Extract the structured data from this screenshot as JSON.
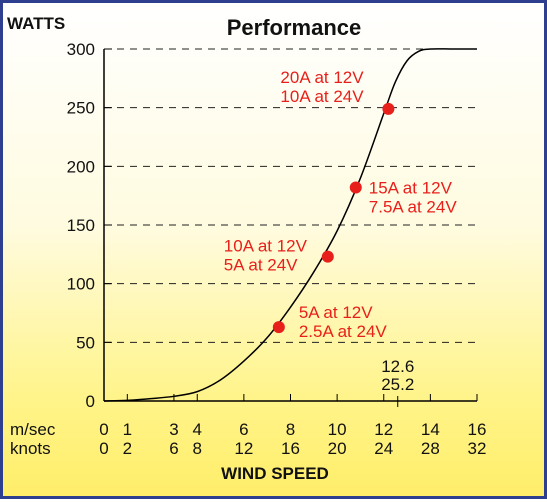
{
  "chart_data": {
    "type": "line",
    "title": "Performance",
    "ylabel": "WATTS",
    "xlabel": "WIND SPEED",
    "x_unit_primary": "m/sec",
    "x_unit_secondary": "knots",
    "xlim": [
      0,
      16
    ],
    "ylim": [
      0,
      300
    ],
    "y_ticks": [
      "0",
      "50",
      "100",
      "150",
      "200",
      "250",
      "300"
    ],
    "x_ticks": [
      {
        "msec": "0",
        "knots": "0",
        "v": 0
      },
      {
        "msec": "1",
        "knots": "2",
        "v": 1
      },
      {
        "msec": "3",
        "knots": "6",
        "v": 3
      },
      {
        "msec": "4",
        "knots": "8",
        "v": 4
      },
      {
        "msec": "6",
        "knots": "12",
        "v": 6
      },
      {
        "msec": "8",
        "knots": "16",
        "v": 8
      },
      {
        "msec": "10",
        "knots": "20",
        "v": 10
      },
      {
        "msec": "12",
        "knots": "24",
        "v": 12
      },
      {
        "msec": "14",
        "knots": "28",
        "v": 14
      },
      {
        "msec": "16",
        "knots": "32",
        "v": 16
      }
    ],
    "marker_tick": {
      "msec": "12.6",
      "knots": "25.2",
      "v": 12.6
    },
    "grid": "horizontal-dashed",
    "series": [
      {
        "x": [
          0,
          1,
          2,
          3,
          4,
          5,
          6,
          7,
          8,
          9,
          10,
          11,
          12,
          12.5,
          13,
          13.5,
          14,
          15,
          16
        ],
        "y": [
          0,
          0.5,
          2,
          4,
          8,
          18,
          34,
          54,
          80,
          110,
          145,
          190,
          245,
          272,
          290,
          298,
          300,
          300,
          300
        ]
      }
    ],
    "points": [
      {
        "x": 7.5,
        "y": 63,
        "labels": [
          "5A at 12V",
          "2.5A at 24V"
        ]
      },
      {
        "x": 9.6,
        "y": 123,
        "labels": [
          "10A at 12V",
          "5A at 24V"
        ]
      },
      {
        "x": 10.8,
        "y": 182,
        "labels": [
          "15A at 12V",
          "7.5A at 24V"
        ]
      },
      {
        "x": 12.2,
        "y": 249,
        "labels": [
          "20A at 12V",
          "10A at 24V"
        ]
      }
    ],
    "colors": {
      "line": "#000000",
      "points": "#e8201b",
      "border": "#2e3f8f"
    }
  }
}
